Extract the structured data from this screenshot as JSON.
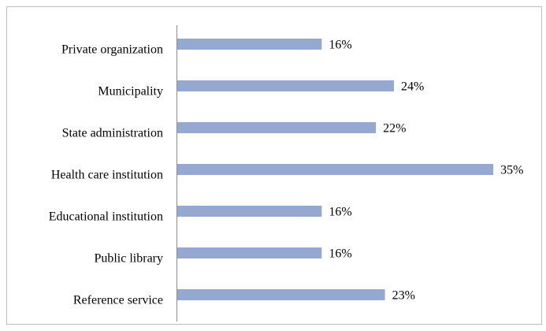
{
  "chart_data": {
    "type": "bar",
    "orientation": "horizontal",
    "categories": [
      "Private organization",
      "Municipality",
      "State administration",
      "Health care institution",
      "Educational institution",
      "Public library",
      "Reference service"
    ],
    "values": [
      16,
      24,
      22,
      35,
      16,
      16,
      23
    ],
    "value_labels": [
      "16%",
      "24%",
      "22%",
      "35%",
      "16%",
      "16%",
      "23%"
    ],
    "color": "#94a8d0"
  }
}
